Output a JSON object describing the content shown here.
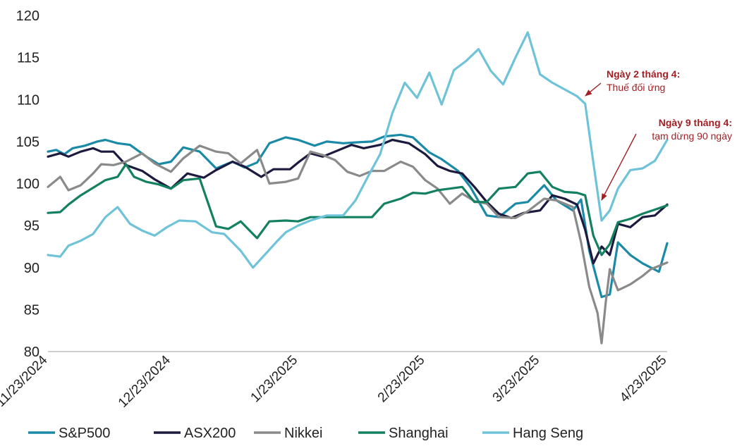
{
  "chart_data": {
    "type": "line",
    "title": "",
    "xlabel": "",
    "ylabel": "",
    "ylim": [
      80,
      120
    ],
    "yticks": [
      80,
      85,
      90,
      95,
      100,
      105,
      110,
      115,
      120
    ],
    "xlim": [
      "2024-11-23",
      "2025-04-23"
    ],
    "xtick_labels": [
      "11/23/2024",
      "12/23/2024",
      "1/23/2025",
      "2/23/2025",
      "3/23/2025",
      "4/23/2025"
    ],
    "xtick_dates": [
      "2024-11-23",
      "2024-12-23",
      "2025-01-23",
      "2025-02-23",
      "2025-03-23",
      "2025-04-23"
    ],
    "grid": false,
    "legend_position": "bottom",
    "annotations": [
      {
        "title": "Ngày 2 tháng 4:",
        "text": "Thuế đối ứng",
        "date": "2025-04-02",
        "y": 96.0
      },
      {
        "title": "Ngày 9 tháng 4:",
        "text": "tạm dừng 90 ngày",
        "date": "2025-04-09",
        "y": 97.2
      }
    ],
    "series": [
      {
        "name": "S&P500",
        "color": "#1a8aa6",
        "x": [
          "2024-11-23",
          "2024-11-25",
          "2024-11-27",
          "2024-11-29",
          "2024-12-02",
          "2024-12-05",
          "2024-12-07",
          "2024-12-10",
          "2024-12-13",
          "2024-12-17",
          "2024-12-20",
          "2024-12-23",
          "2024-12-26",
          "2024-12-30",
          "2025-01-03",
          "2025-01-07",
          "2025-01-10",
          "2025-01-13",
          "2025-01-16",
          "2025-01-20",
          "2025-01-23",
          "2025-01-27",
          "2025-01-30",
          "2025-02-03",
          "2025-02-06",
          "2025-02-10",
          "2025-02-13",
          "2025-02-17",
          "2025-02-20",
          "2025-02-24",
          "2025-02-27",
          "2025-03-03",
          "2025-03-06",
          "2025-03-10",
          "2025-03-13",
          "2025-03-17",
          "2025-03-20",
          "2025-03-24",
          "2025-03-27",
          "2025-03-31",
          "2025-04-02",
          "2025-04-04",
          "2025-04-07",
          "2025-04-09",
          "2025-04-11",
          "2025-04-14",
          "2025-04-17",
          "2025-04-21",
          "2025-04-23"
        ],
        "values": [
          103.8,
          104.0,
          103.5,
          104.2,
          104.5,
          105.0,
          105.2,
          104.8,
          104.6,
          103.2,
          102.3,
          102.6,
          104.3,
          103.8,
          101.8,
          102.6,
          101.9,
          102.5,
          104.8,
          105.5,
          105.2,
          104.5,
          105.0,
          104.8,
          104.9,
          105.0,
          105.6,
          105.8,
          105.5,
          103.7,
          102.9,
          101.5,
          99.6,
          96.2,
          96.0,
          97.6,
          97.8,
          99.8,
          98.0,
          96.8,
          98.1,
          92.0,
          86.5,
          86.8,
          93.0,
          91.5,
          90.5,
          89.5,
          92.9
        ]
      },
      {
        "name": "ASX200",
        "color": "#1c1a3e",
        "x": [
          "2024-11-23",
          "2024-11-26",
          "2024-11-28",
          "2024-12-01",
          "2024-12-04",
          "2024-12-06",
          "2024-12-09",
          "2024-12-12",
          "2024-12-16",
          "2024-12-19",
          "2024-12-23",
          "2024-12-27",
          "2024-12-31",
          "2025-01-03",
          "2025-01-07",
          "2025-01-10",
          "2025-01-14",
          "2025-01-17",
          "2025-01-21",
          "2025-01-23",
          "2025-01-26",
          "2025-01-29",
          "2025-02-01",
          "2025-02-05",
          "2025-02-08",
          "2025-02-12",
          "2025-02-15",
          "2025-02-19",
          "2025-02-23",
          "2025-02-26",
          "2025-03-01",
          "2025-03-04",
          "2025-03-07",
          "2025-03-10",
          "2025-03-13",
          "2025-03-16",
          "2025-03-19",
          "2025-03-23",
          "2025-03-26",
          "2025-03-29",
          "2025-04-01",
          "2025-04-03",
          "2025-04-05",
          "2025-04-07",
          "2025-04-09",
          "2025-04-11",
          "2025-04-14",
          "2025-04-17",
          "2025-04-20",
          "2025-04-23"
        ],
        "values": [
          103.2,
          103.6,
          103.2,
          103.8,
          104.2,
          103.8,
          103.8,
          102.2,
          101.5,
          100.5,
          99.4,
          101.2,
          100.7,
          101.6,
          102.6,
          102.0,
          100.8,
          101.7,
          101.7,
          102.5,
          103.6,
          103.2,
          103.8,
          104.6,
          104.2,
          104.6,
          105.2,
          104.8,
          103.5,
          102.1,
          101.5,
          101.2,
          99.6,
          97.8,
          96.4,
          95.9,
          96.5,
          96.8,
          98.6,
          98.2,
          97.5,
          94.5,
          90.5,
          92.5,
          91.5,
          95.2,
          94.8,
          96.0,
          96.2,
          97.5
        ]
      },
      {
        "name": "Nikkei",
        "color": "#8a8a8a",
        "x": [
          "2024-11-23",
          "2024-11-26",
          "2024-11-28",
          "2024-12-01",
          "2024-12-04",
          "2024-12-06",
          "2024-12-09",
          "2024-12-12",
          "2024-12-16",
          "2024-12-19",
          "2024-12-23",
          "2024-12-26",
          "2024-12-30",
          "2025-01-03",
          "2025-01-06",
          "2025-01-09",
          "2025-01-13",
          "2025-01-16",
          "2025-01-20",
          "2025-01-23",
          "2025-01-26",
          "2025-01-29",
          "2025-02-01",
          "2025-02-04",
          "2025-02-07",
          "2025-02-10",
          "2025-02-13",
          "2025-02-17",
          "2025-02-20",
          "2025-02-23",
          "2025-02-26",
          "2025-03-01",
          "2025-03-04",
          "2025-03-07",
          "2025-03-10",
          "2025-03-13",
          "2025-03-17",
          "2025-03-20",
          "2025-03-24",
          "2025-03-27",
          "2025-03-31",
          "2025-04-02",
          "2025-04-04",
          "2025-04-06",
          "2025-04-07",
          "2025-04-08",
          "2025-04-09",
          "2025-04-11",
          "2025-04-14",
          "2025-04-17",
          "2025-04-19",
          "2025-04-21",
          "2025-04-23"
        ],
        "values": [
          99.6,
          100.8,
          99.2,
          99.8,
          101.2,
          102.3,
          102.2,
          102.6,
          103.6,
          102.4,
          101.4,
          103.0,
          104.5,
          103.8,
          103.6,
          102.4,
          104.0,
          100.0,
          100.2,
          100.6,
          103.8,
          103.4,
          102.8,
          101.4,
          100.9,
          101.5,
          101.5,
          102.6,
          102.0,
          100.4,
          99.4,
          97.6,
          98.8,
          97.9,
          97.6,
          96.0,
          95.9,
          96.7,
          98.2,
          98.0,
          97.2,
          93.0,
          87.7,
          84.6,
          81.0,
          85.8,
          89.8,
          87.3,
          88.0,
          89.0,
          89.8,
          90.2,
          90.6
        ]
      },
      {
        "name": "Shanghai",
        "color": "#138060",
        "x": [
          "2024-11-23",
          "2024-11-26",
          "2024-11-28",
          "2024-12-01",
          "2024-12-04",
          "2024-12-07",
          "2024-12-10",
          "2024-12-12",
          "2024-12-14",
          "2024-12-17",
          "2024-12-20",
          "2024-12-23",
          "2024-12-26",
          "2024-12-30",
          "2025-01-03",
          "2025-01-06",
          "2025-01-09",
          "2025-01-13",
          "2025-01-16",
          "2025-01-20",
          "2025-01-23",
          "2025-01-26",
          "2025-01-30",
          "2025-02-03",
          "2025-02-07",
          "2025-02-10",
          "2025-02-13",
          "2025-02-17",
          "2025-02-20",
          "2025-02-23",
          "2025-02-26",
          "2025-03-01",
          "2025-03-04",
          "2025-03-07",
          "2025-03-10",
          "2025-03-13",
          "2025-03-17",
          "2025-03-20",
          "2025-03-23",
          "2025-03-26",
          "2025-03-29",
          "2025-04-01",
          "2025-04-03",
          "2025-04-05",
          "2025-04-07",
          "2025-04-09",
          "2025-04-11",
          "2025-04-14",
          "2025-04-17",
          "2025-04-20",
          "2025-04-23"
        ],
        "values": [
          96.5,
          96.6,
          97.5,
          98.6,
          99.5,
          100.4,
          100.8,
          102.3,
          100.8,
          100.2,
          99.9,
          99.4,
          100.4,
          100.6,
          94.9,
          94.6,
          95.5,
          93.5,
          95.5,
          95.6,
          95.5,
          96.0,
          96.0,
          96.0,
          96.0,
          96.0,
          97.6,
          98.2,
          98.9,
          98.8,
          99.2,
          99.4,
          99.6,
          97.8,
          97.8,
          99.4,
          99.6,
          101.2,
          101.4,
          99.6,
          99.0,
          98.9,
          98.6,
          93.8,
          91.5,
          92.8,
          95.4,
          95.8,
          96.4,
          96.9,
          97.4
        ]
      },
      {
        "name": "Hang Seng",
        "color": "#6ec3d8",
        "x": [
          "2024-11-23",
          "2024-11-26",
          "2024-11-28",
          "2024-12-01",
          "2024-12-04",
          "2024-12-07",
          "2024-12-10",
          "2024-12-13",
          "2024-12-16",
          "2024-12-19",
          "2024-12-22",
          "2024-12-25",
          "2024-12-29",
          "2025-01-02",
          "2025-01-05",
          "2025-01-09",
          "2025-01-12",
          "2025-01-15",
          "2025-01-18",
          "2025-01-20",
          "2025-01-23",
          "2025-01-26",
          "2025-01-30",
          "2025-02-03",
          "2025-02-06",
          "2025-02-09",
          "2025-02-12",
          "2025-02-15",
          "2025-02-18",
          "2025-02-21",
          "2025-02-24",
          "2025-02-27",
          "2025-03-02",
          "2025-03-05",
          "2025-03-08",
          "2025-03-11",
          "2025-03-14",
          "2025-03-17",
          "2025-03-20",
          "2025-03-23",
          "2025-03-26",
          "2025-03-29",
          "2025-04-01",
          "2025-04-03",
          "2025-04-05",
          "2025-04-07",
          "2025-04-09",
          "2025-04-11",
          "2025-04-14",
          "2025-04-17",
          "2025-04-20",
          "2025-04-23"
        ],
        "values": [
          91.5,
          91.3,
          92.6,
          93.2,
          94.0,
          96.0,
          97.2,
          95.2,
          94.4,
          93.8,
          94.8,
          95.6,
          95.5,
          94.2,
          94.0,
          92.0,
          90.0,
          91.6,
          93.2,
          94.2,
          95.0,
          95.6,
          96.2,
          96.2,
          98.0,
          100.8,
          103.5,
          108.4,
          112.0,
          110.2,
          113.2,
          109.4,
          113.5,
          114.6,
          116.0,
          113.4,
          111.8,
          115.0,
          118.0,
          113.0,
          112.0,
          111.2,
          110.4,
          109.5,
          102.5,
          95.6,
          96.8,
          99.4,
          101.6,
          101.8,
          102.7,
          105.2
        ]
      }
    ]
  }
}
